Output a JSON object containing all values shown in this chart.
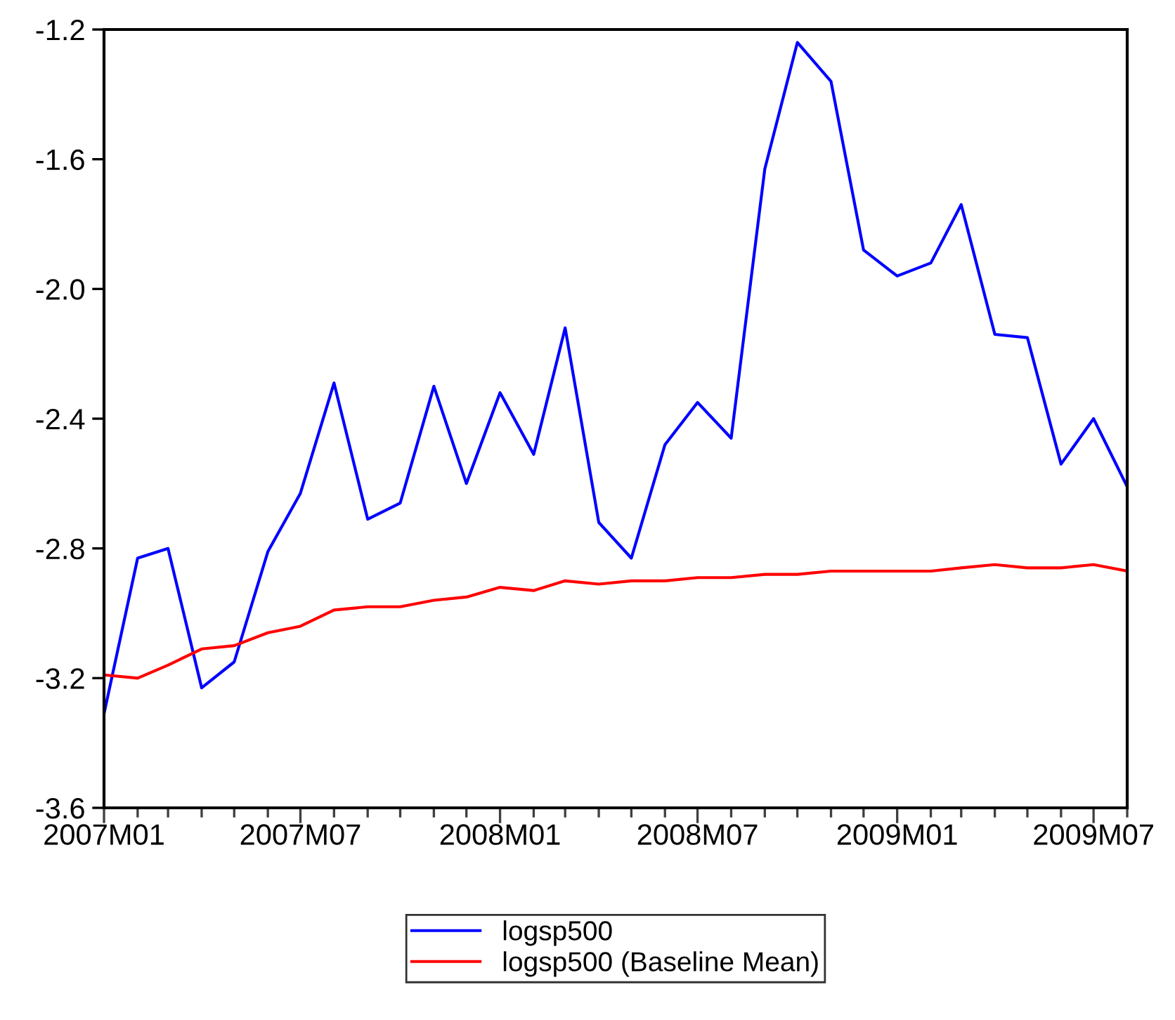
{
  "chart_data": {
    "type": "line",
    "x": [
      "2007-01",
      "2007-02",
      "2007-03",
      "2007-04",
      "2007-05",
      "2007-06",
      "2007-07",
      "2007-08",
      "2007-09",
      "2007-10",
      "2007-11",
      "2007-12",
      "2008-01",
      "2008-02",
      "2008-03",
      "2008-04",
      "2008-05",
      "2008-06",
      "2008-07",
      "2008-08",
      "2008-09",
      "2008-10",
      "2008-11",
      "2008-12",
      "2009-01",
      "2009-02",
      "2009-03",
      "2009-04",
      "2009-05",
      "2009-06",
      "2009-07",
      "2009-08"
    ],
    "series": [
      {
        "name": "logsp500",
        "color": "#0000ff",
        "values": [
          -3.31,
          -2.83,
          -2.8,
          -3.23,
          -3.15,
          -2.81,
          -2.63,
          -2.29,
          -2.71,
          -2.66,
          -2.3,
          -2.6,
          -2.32,
          -2.51,
          -2.12,
          -2.72,
          -2.83,
          -2.48,
          -2.35,
          -2.46,
          -1.63,
          -1.24,
          -1.36,
          -1.88,
          -1.96,
          -1.92,
          -1.74,
          -2.14,
          -2.15,
          -2.54,
          -2.4,
          -2.61
        ]
      },
      {
        "name": "logsp500 (Baseline Mean)",
        "color": "#ff0000",
        "values": [
          -3.19,
          -3.2,
          -3.16,
          -3.11,
          -3.1,
          -3.06,
          -3.04,
          -2.99,
          -2.98,
          -2.98,
          -2.96,
          -2.95,
          -2.92,
          -2.93,
          -2.9,
          -2.91,
          -2.9,
          -2.9,
          -2.89,
          -2.89,
          -2.88,
          -2.88,
          -2.87,
          -2.87,
          -2.87,
          -2.87,
          -2.86,
          -2.85,
          -2.86,
          -2.86,
          -2.85,
          -2.87
        ]
      }
    ],
    "xlim": [
      "2007-01",
      "2009-08"
    ],
    "xticks": [
      {
        "value": "2007-01",
        "label": "2007M01"
      },
      {
        "value": "2007-02",
        "label": null
      },
      {
        "value": "2007-03",
        "label": null
      },
      {
        "value": "2007-04",
        "label": null
      },
      {
        "value": "2007-05",
        "label": null
      },
      {
        "value": "2007-06",
        "label": null
      },
      {
        "value": "2007-07",
        "label": "2007M07"
      },
      {
        "value": "2007-08",
        "label": null
      },
      {
        "value": "2007-09",
        "label": null
      },
      {
        "value": "2007-10",
        "label": null
      },
      {
        "value": "2007-11",
        "label": null
      },
      {
        "value": "2007-12",
        "label": null
      },
      {
        "value": "2008-01",
        "label": "2008M01"
      },
      {
        "value": "2008-02",
        "label": null
      },
      {
        "value": "2008-03",
        "label": null
      },
      {
        "value": "2008-04",
        "label": null
      },
      {
        "value": "2008-05",
        "label": null
      },
      {
        "value": "2008-06",
        "label": null
      },
      {
        "value": "2008-07",
        "label": "2008M07"
      },
      {
        "value": "2008-08",
        "label": null
      },
      {
        "value": "2008-09",
        "label": null
      },
      {
        "value": "2008-10",
        "label": null
      },
      {
        "value": "2008-11",
        "label": null
      },
      {
        "value": "2008-12",
        "label": null
      },
      {
        "value": "2009-01",
        "label": "2009M01"
      },
      {
        "value": "2009-02",
        "label": null
      },
      {
        "value": "2009-03",
        "label": null
      },
      {
        "value": "2009-04",
        "label": null
      },
      {
        "value": "2009-05",
        "label": null
      },
      {
        "value": "2009-06",
        "label": null
      },
      {
        "value": "2009-07",
        "label": "2009M07"
      },
      {
        "value": "2009-08",
        "label": null
      }
    ],
    "ylim": [
      -3.6,
      -1.2
    ],
    "yticks": [
      -3.6,
      -3.2,
      -2.8,
      -2.4,
      {
        "value": -2.0,
        "label": "-2.0"
      },
      -1.6,
      -1.2
    ],
    "grid": false,
    "legend": "bottom",
    "marker": "none",
    "line_style": "solid"
  }
}
